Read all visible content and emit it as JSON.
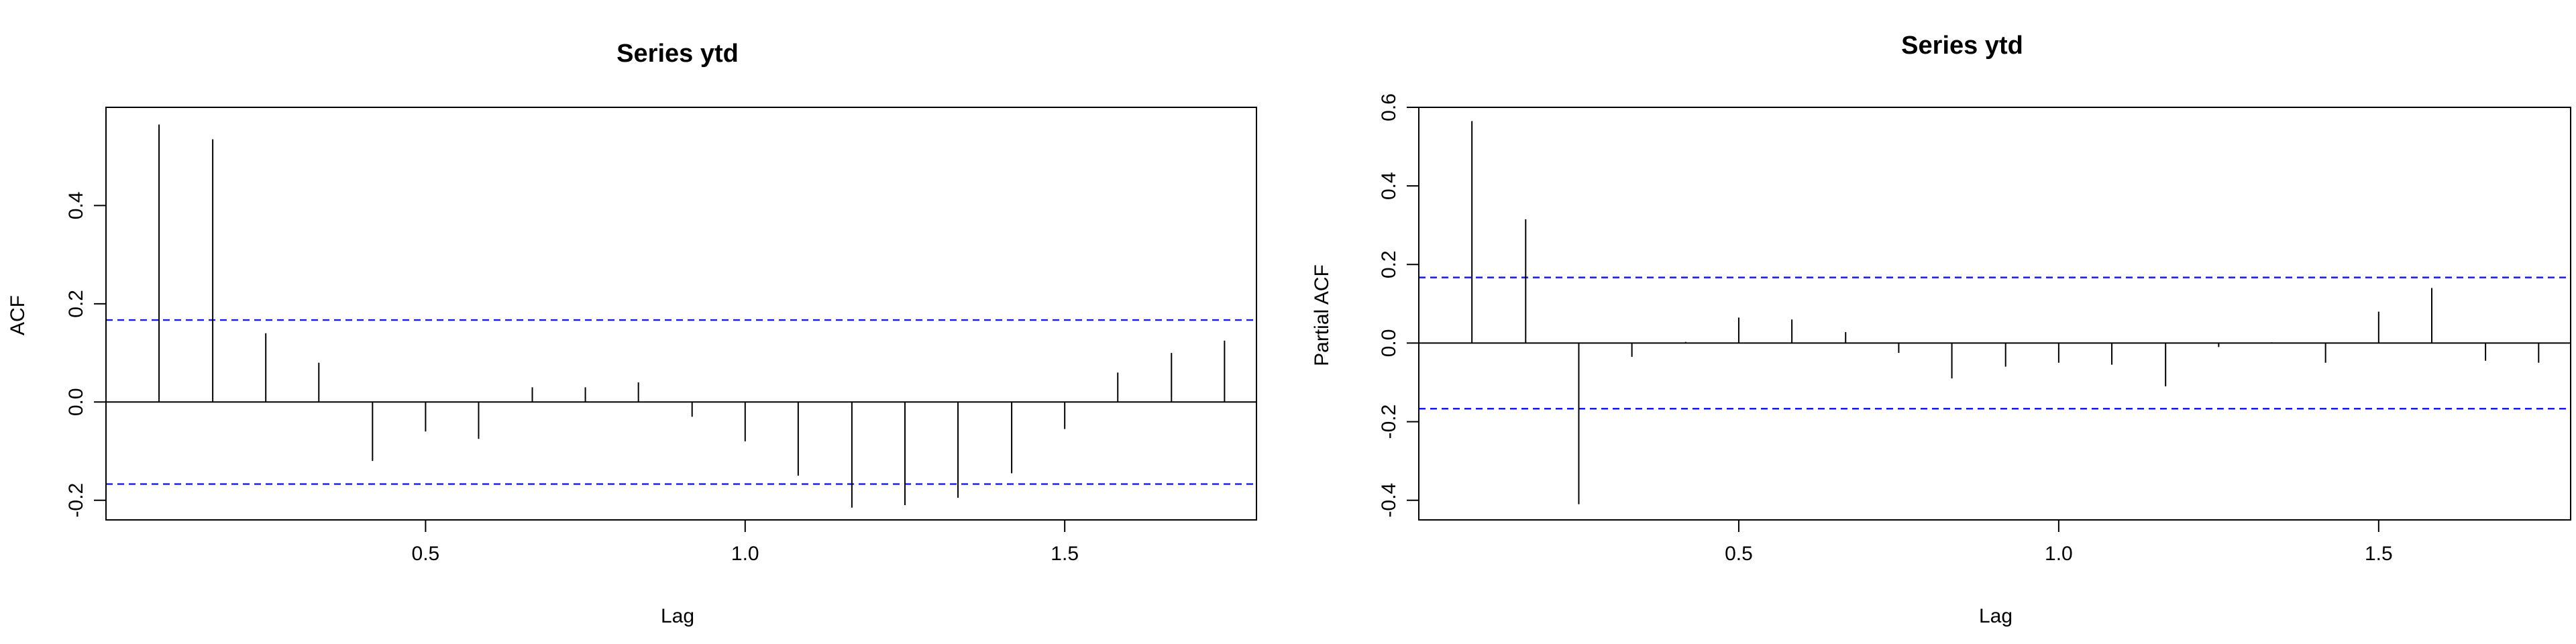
{
  "chart_data": [
    {
      "type": "bar",
      "title": "Series ytd",
      "xlabel": "Lag",
      "ylabel": "ACF",
      "xlim": [
        0.0,
        1.8
      ],
      "ylim": [
        -0.24,
        0.6
      ],
      "xticks": [
        "0.5",
        "1.0",
        "1.5"
      ],
      "yticks": [
        "-0.2",
        "0.0",
        "0.2",
        "0.4"
      ],
      "confidence_bound": 0.167,
      "x": [
        0.083,
        0.167,
        0.25,
        0.333,
        0.417,
        0.5,
        0.583,
        0.667,
        0.75,
        0.833,
        0.917,
        1.0,
        1.083,
        1.167,
        1.25,
        1.333,
        1.417,
        1.5,
        1.583,
        1.667,
        1.75
      ],
      "values": [
        0.565,
        0.535,
        0.14,
        0.08,
        -0.12,
        -0.06,
        -0.075,
        0.03,
        0.03,
        0.04,
        -0.03,
        -0.08,
        -0.15,
        -0.215,
        -0.21,
        -0.195,
        -0.145,
        -0.055,
        0.06,
        0.1,
        0.125
      ],
      "colors": {
        "bars": "#000000",
        "bounds": "#1a1ae6",
        "zero": "#000000"
      }
    },
    {
      "type": "bar",
      "title": "Series  ytd",
      "xlabel": "Lag",
      "ylabel": "Partial ACF",
      "xlim": [
        0.0,
        1.8
      ],
      "ylim": [
        -0.45,
        0.6
      ],
      "xticks": [
        "0.5",
        "1.0",
        "1.5"
      ],
      "yticks": [
        "-0.4",
        "-0.2",
        "0.0",
        "0.2",
        "0.4",
        "0.6"
      ],
      "confidence_bound": 0.167,
      "x": [
        0.083,
        0.167,
        0.25,
        0.333,
        0.417,
        0.5,
        0.583,
        0.667,
        0.75,
        0.833,
        0.917,
        1.0,
        1.083,
        1.167,
        1.25,
        1.333,
        1.417,
        1.5,
        1.583,
        1.667,
        1.75
      ],
      "values": [
        0.565,
        0.315,
        -0.41,
        -0.035,
        0.003,
        0.065,
        0.06,
        0.028,
        -0.025,
        -0.09,
        -0.06,
        -0.05,
        -0.055,
        -0.11,
        -0.01,
        0.002,
        -0.05,
        0.08,
        0.14,
        -0.045,
        -0.05
      ],
      "colors": {
        "bars": "#000000",
        "bounds": "#1a1ae6",
        "zero": "#000000"
      }
    }
  ]
}
